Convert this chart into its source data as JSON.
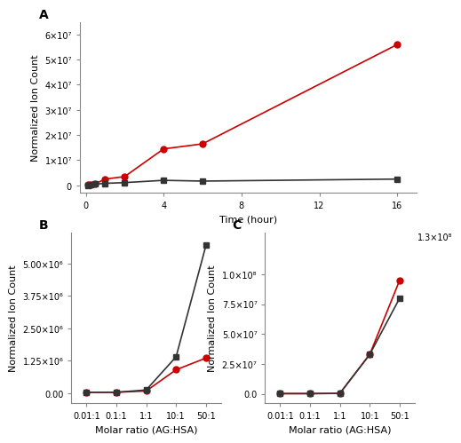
{
  "panel_A": {
    "time_x": [
      0.1,
      0.25,
      0.5,
      1.0,
      2.0,
      4.0,
      6.0,
      16.0
    ],
    "red_y": [
      200000,
      350000,
      700000,
      2500000,
      3500000,
      14500000,
      16500000,
      56000000
    ],
    "black_y": [
      100000,
      250000,
      500000,
      800000,
      1100000,
      2000000,
      1700000,
      2500000
    ],
    "xlabel": "Time (hour)",
    "ylabel": "Normalized Ion Count",
    "label": "A",
    "ylim_lo": -3000000,
    "ylim_hi": 65000000,
    "ytick_vals": [
      0,
      10000000,
      20000000,
      30000000,
      40000000,
      50000000,
      60000000
    ],
    "ytick_labels": [
      "0",
      "1×10⁷",
      "2×10⁷",
      "3×10⁷",
      "4×10⁷",
      "5×10⁷",
      "6×10⁷"
    ],
    "xticks": [
      0,
      4,
      8,
      12,
      16
    ],
    "xlim_lo": -0.3,
    "xlim_hi": 17
  },
  "panel_B": {
    "x_labels": [
      "0.01:1",
      "0.1:1",
      "1:1",
      "10:1",
      "50:1"
    ],
    "x_vals": [
      0,
      1,
      2,
      3,
      4
    ],
    "red_y": [
      30000,
      30000,
      80000,
      900000,
      1350000
    ],
    "black_y": [
      30000,
      30000,
      120000,
      1400000,
      5700000
    ],
    "xlabel": "Molar ratio (AG:HSA)",
    "ylabel": "Normalized Ion Count",
    "label": "B",
    "ylim_lo": -400000,
    "ylim_hi": 6200000,
    "ytick_vals": [
      0,
      1250000,
      2500000,
      3750000,
      5000000
    ],
    "ytick_labels": [
      "0.00",
      "1.25×10⁶",
      "2.50×10⁶",
      "3.75×10⁶",
      "5.00×10⁶"
    ]
  },
  "panel_C": {
    "x_labels": [
      "0.01:1",
      "0.1:1",
      "1:1",
      "10:1",
      "50:1"
    ],
    "x_vals": [
      0,
      1,
      2,
      3,
      4
    ],
    "red_y": [
      200000,
      200000,
      400000,
      33000000,
      95000000
    ],
    "black_y": [
      200000,
      200000,
      400000,
      33000000,
      80000000
    ],
    "xlabel": "Molar ratio (AG:HSA)",
    "ylabel": "Normalized Ion Count",
    "label": "C",
    "ylim_lo": -8000000,
    "ylim_hi": 135000000,
    "ytick_vals": [
      0,
      25000000,
      50000000,
      75000000,
      100000000
    ],
    "ytick_labels": [
      "0.0",
      "2.5×10⁷",
      "5.0×10⁷",
      "7.5×10⁷",
      "1.0×10⁸"
    ],
    "top_label": "1.3×10⁸"
  },
  "red_color": "#cc0000",
  "black_color": "#333333",
  "marker_red": "o",
  "marker_black": "s",
  "markersize": 5,
  "linewidth": 1.2,
  "fontsize_label": 8,
  "fontsize_tick": 7,
  "fontsize_panel": 10
}
